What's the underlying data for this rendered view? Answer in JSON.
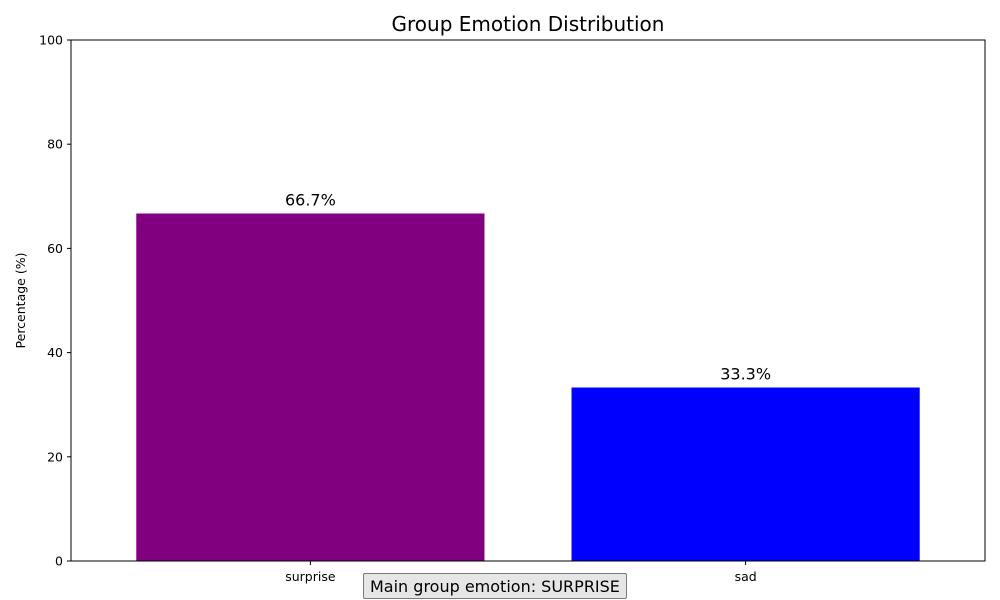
{
  "chart_data": {
    "type": "bar",
    "title": "Group Emotion Distribution",
    "xlabel": "",
    "ylabel": "Percentage (%)",
    "categories": [
      "surprise",
      "sad"
    ],
    "values": [
      66.7,
      33.3
    ],
    "value_labels": [
      "66.7%",
      "33.3%"
    ],
    "colors": [
      "#800080",
      "#0000ff"
    ],
    "ylim": [
      0,
      100
    ],
    "yticks": [
      0,
      20,
      40,
      60,
      80,
      100
    ],
    "grid": false,
    "legend": "none"
  },
  "annotation": {
    "text": "Main group emotion: SURPRISE"
  }
}
